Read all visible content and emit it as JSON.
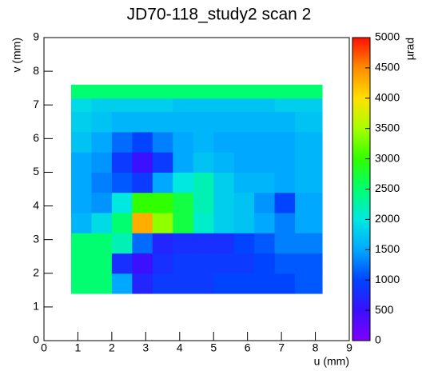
{
  "chart_data": {
    "type": "heatmap",
    "title": "JD70-118_study2 scan 2",
    "x_label": "u (mm)",
    "y_label": "v (mm)",
    "z_label": "µrad",
    "xlim": [
      0,
      9
    ],
    "ylim": [
      0,
      9
    ],
    "zlim": [
      0,
      5000
    ],
    "xticks": [
      0,
      1,
      2,
      3,
      4,
      5,
      6,
      7,
      8,
      9
    ],
    "yticks": [
      0,
      1,
      2,
      3,
      4,
      5,
      6,
      7,
      8,
      9
    ],
    "zticks": [
      0,
      500,
      1000,
      1500,
      2000,
      2500,
      3000,
      3500,
      4000,
      4500,
      5000
    ],
    "colorscale": [
      "#7f00ff",
      "#3a10ff",
      "#0044ff",
      "#00a8ff",
      "#00e8e0",
      "#00ff70",
      "#30ff00",
      "#a8ff00",
      "#ffe000",
      "#ff8c00",
      "#ff1000"
    ],
    "x_edges": [
      0.8,
      1.4,
      2.0,
      2.6,
      3.2,
      3.8,
      4.4,
      5.0,
      5.6,
      6.2,
      6.8,
      7.4,
      8.2
    ],
    "y_edges": [
      1.4,
      2.0,
      2.6,
      3.2,
      3.8,
      4.4,
      5.0,
      5.6,
      6.2,
      6.8,
      7.2,
      7.6
    ],
    "z": [
      [
        2500,
        2500,
        1500,
        700,
        900,
        900,
        900,
        1000,
        1000,
        1000,
        1000,
        1100
      ],
      [
        2500,
        2500,
        800,
        500,
        800,
        900,
        900,
        900,
        900,
        1000,
        1100,
        1100
      ],
      [
        2500,
        2500,
        2200,
        1200,
        700,
        800,
        800,
        800,
        1000,
        1100,
        1300,
        1300
      ],
      [
        1600,
        1900,
        2500,
        4300,
        3400,
        2700,
        2100,
        1800,
        1700,
        1500,
        1300,
        1500
      ],
      [
        1500,
        1400,
        2000,
        3000,
        3000,
        2700,
        2200,
        1800,
        1700,
        1400,
        1000,
        1500
      ],
      [
        1500,
        1300,
        1100,
        900,
        1500,
        2000,
        2200,
        1800,
        1600,
        1600,
        1500,
        1600
      ],
      [
        1500,
        1400,
        900,
        500,
        900,
        1500,
        1700,
        1600,
        1500,
        1500,
        1500,
        1600
      ],
      [
        1700,
        1500,
        1200,
        1000,
        1300,
        1500,
        1600,
        1500,
        1500,
        1500,
        1500,
        1600
      ],
      [
        1800,
        1700,
        1600,
        1600,
        1600,
        1600,
        1600,
        1600,
        1600,
        1600,
        1600,
        1700
      ],
      [
        1900,
        1800,
        1800,
        1800,
        1800,
        1700,
        1700,
        1700,
        1700,
        1700,
        1800,
        1800
      ],
      [
        2500,
        2500,
        2500,
        2500,
        2500,
        2500,
        2500,
        2500,
        2500,
        2500,
        2500,
        2500
      ]
    ]
  }
}
